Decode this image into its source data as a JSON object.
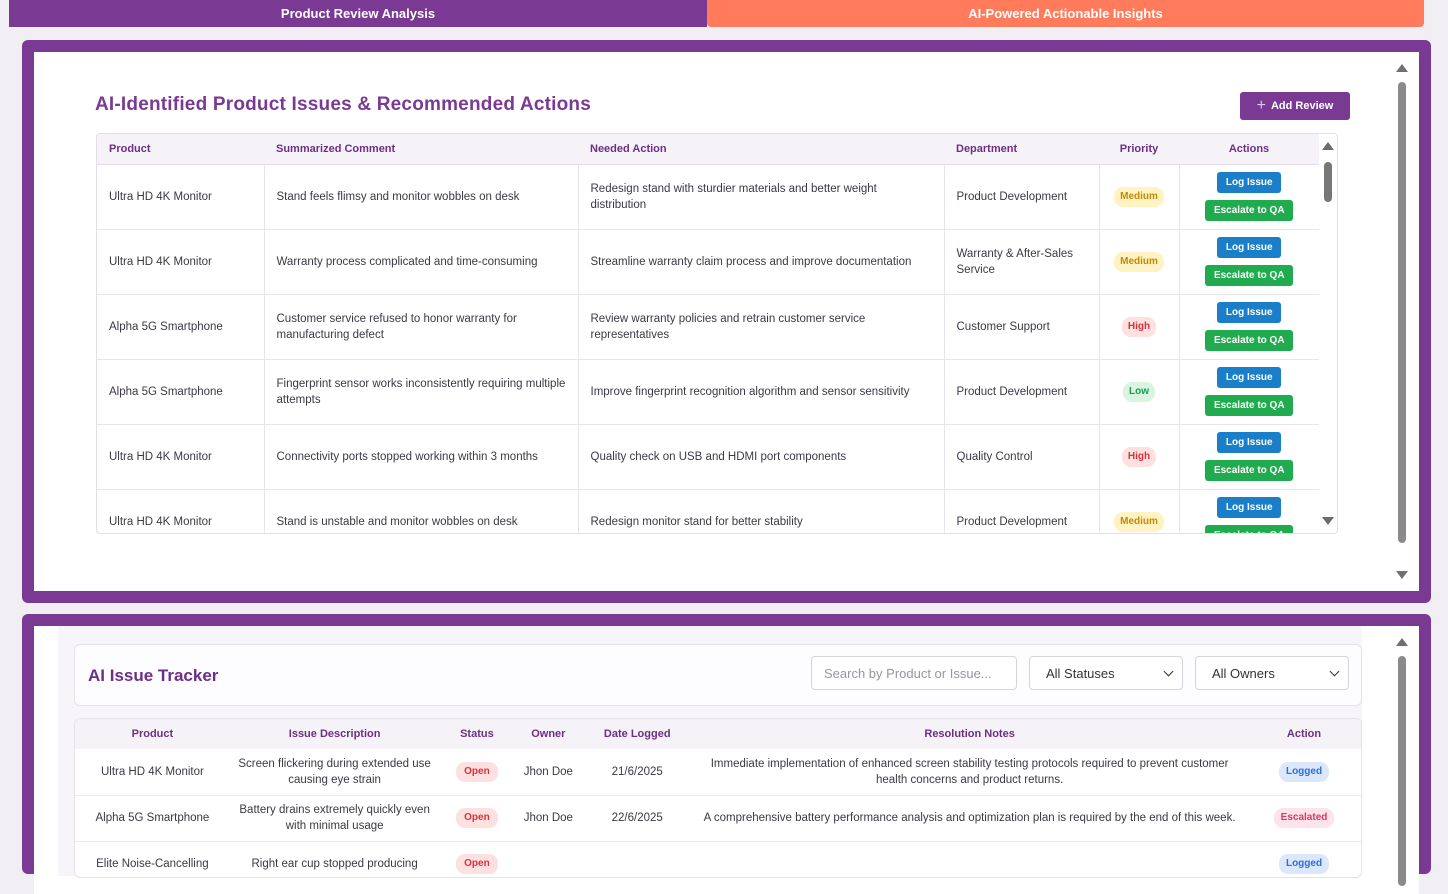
{
  "tabs": {
    "left": "Product Review Analysis",
    "right": "AI-Powered Actionable Insights"
  },
  "issues": {
    "title": "AI-Identified Product Issues & Recommended Actions",
    "add_button": "Add Review",
    "columns": [
      "Product",
      "Summarized Comment",
      "Needed Action",
      "Department",
      "Priority",
      "Actions"
    ],
    "log_label": "Log Issue",
    "escalate_label": "Escalate to QA",
    "rows": [
      {
        "product": "Ultra HD 4K Monitor",
        "comment": "Stand feels flimsy and monitor wobbles on desk",
        "action": "Redesign stand with sturdier materials and better weight distribution",
        "department": "Product Development",
        "priority": "Medium"
      },
      {
        "product": "Ultra HD 4K Monitor",
        "comment": "Warranty process complicated and time-consuming",
        "action": "Streamline warranty claim process and improve documentation",
        "department": "Warranty & After-Sales Service",
        "priority": "Medium"
      },
      {
        "product": "Alpha 5G Smartphone",
        "comment": "Customer service refused to honor warranty for manufacturing defect",
        "action": "Review warranty policies and retrain customer service representatives",
        "department": "Customer Support",
        "priority": "High"
      },
      {
        "product": "Alpha 5G Smartphone",
        "comment": "Fingerprint sensor works inconsistently requiring multiple attempts",
        "action": "Improve fingerprint recognition algorithm and sensor sensitivity",
        "department": "Product Development",
        "priority": "Low"
      },
      {
        "product": "Ultra HD 4K Monitor",
        "comment": "Connectivity ports stopped working within 3 months",
        "action": "Quality check on USB and HDMI port components",
        "department": "Quality Control",
        "priority": "High"
      },
      {
        "product": "Ultra HD 4K Monitor",
        "comment": "Stand is unstable and monitor wobbles on desk",
        "action": "Redesign monitor stand for better stability",
        "department": "Product Development",
        "priority": "Medium"
      }
    ]
  },
  "tracker": {
    "title": "AI Issue Tracker",
    "search_placeholder": "Search by Product or Issue...",
    "status_filter": "All Statuses",
    "owner_filter": "All Owners",
    "columns": [
      "Product",
      "Issue Description",
      "Status",
      "Owner",
      "Date Logged",
      "Resolution Notes",
      "Action"
    ],
    "rows": [
      {
        "product": "Ultra HD 4K Monitor",
        "description": "Screen flickering during extended use causing eye strain",
        "status": "Open",
        "owner": "Jhon Doe",
        "date": "21/6/2025",
        "notes": "Immediate implementation of enhanced screen stability testing protocols required to prevent customer health concerns and product returns.",
        "action": "Logged"
      },
      {
        "product": "Alpha 5G Smartphone",
        "description": "Battery drains extremely quickly even with minimal usage",
        "status": "Open",
        "owner": "Jhon Doe",
        "date": "22/6/2025",
        "notes": "A comprehensive battery performance analysis and optimization plan is required by the end of this week.",
        "action": "Escalated"
      },
      {
        "product": "Elite Noise-Cancelling",
        "description": "Right ear cup stopped producing",
        "status": "Open",
        "owner": "",
        "date": "",
        "notes": "",
        "action": "Logged"
      }
    ]
  }
}
